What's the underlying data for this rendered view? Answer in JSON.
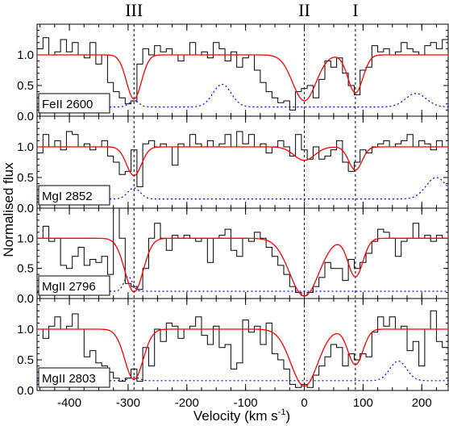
{
  "chart_data": {
    "type": "line",
    "xlabel": "Velocity (km s",
    "xlabel_sup": "-1",
    "xlabel_close": ")",
    "ylabel": "Normalised flux",
    "xlim": [
      -455,
      245
    ],
    "ylim": [
      0.0,
      1.5
    ],
    "x_ticks": [
      -400,
      -300,
      -200,
      -100,
      0,
      100,
      200
    ],
    "y_ticks": [
      0.0,
      0.5,
      1.0
    ],
    "colors": {
      "data": "#000000",
      "fit": "#ff0000",
      "error": "#0000ff",
      "marker": "#000000"
    },
    "components": [
      {
        "label": "III",
        "velocity": -290
      },
      {
        "label": "II",
        "velocity": 0
      },
      {
        "label": "I",
        "velocity": 87
      }
    ],
    "panels": [
      {
        "label": "FeII 2600",
        "data_x": [
          -450,
          -440,
          -430,
          -420,
          -410,
          -400,
          -390,
          -380,
          -370,
          -360,
          -350,
          -340,
          -330,
          -320,
          -310,
          -300,
          -290,
          -280,
          -270,
          -260,
          -250,
          -240,
          -230,
          -220,
          -210,
          -200,
          -190,
          -180,
          -170,
          -160,
          -150,
          -140,
          -130,
          -120,
          -110,
          -100,
          -90,
          -80,
          -70,
          -60,
          -50,
          -40,
          -30,
          -20,
          -10,
          0,
          10,
          20,
          30,
          40,
          50,
          60,
          70,
          80,
          90,
          100,
          110,
          120,
          130,
          140,
          150,
          160,
          170,
          180,
          190,
          200,
          210,
          220,
          230,
          240
        ],
        "data_y": [
          1.1,
          1.28,
          1.0,
          1.05,
          1.25,
          1.05,
          1.2,
          1.0,
          0.95,
          1.2,
          0.85,
          1.0,
          0.55,
          0.4,
          0.3,
          0.2,
          0.25,
          0.85,
          1.1,
          1.0,
          1.15,
          1.05,
          1.1,
          1.0,
          0.9,
          1.0,
          1.2,
          1.0,
          1.05,
          0.95,
          1.2,
          1.1,
          0.9,
          1.05,
          0.8,
          0.95,
          1.0,
          0.75,
          0.55,
          0.4,
          0.3,
          0.22,
          0.25,
          0.1,
          0.4,
          0.45,
          0.5,
          0.3,
          0.6,
          0.9,
          0.8,
          0.95,
          0.7,
          0.5,
          0.35,
          0.75,
          0.8,
          1.15,
          1.05,
          1.1,
          1.0,
          1.05,
          1.2,
          1.1,
          1.05,
          1.0,
          1.15,
          1.2,
          1.1,
          1.25
        ],
        "fit": {
          "continuum": 1.0,
          "lines": [
            {
              "v": -290,
              "depth": 0.72,
              "b": 18
            },
            {
              "v": 0,
              "depth": 0.75,
              "b": 28
            },
            {
              "v": 87,
              "depth": 0.62,
              "b": 18
            }
          ]
        },
        "error": {
          "base": 0.15,
          "bumps": [
            {
              "v": -290,
              "amp": 0.1,
              "w": 12
            },
            {
              "v": -140,
              "amp": 0.37,
              "w": 22
            },
            {
              "v": 190,
              "amp": 0.22,
              "w": 25
            }
          ]
        }
      },
      {
        "label": "MgI 2852",
        "data_x": [
          -450,
          -440,
          -430,
          -420,
          -410,
          -400,
          -390,
          -380,
          -370,
          -360,
          -350,
          -340,
          -330,
          -320,
          -310,
          -300,
          -290,
          -280,
          -270,
          -260,
          -250,
          -240,
          -230,
          -220,
          -210,
          -200,
          -190,
          -180,
          -170,
          -160,
          -150,
          -140,
          -130,
          -120,
          -110,
          -100,
          -90,
          -80,
          -70,
          -60,
          -50,
          -40,
          -30,
          -20,
          -10,
          0,
          10,
          20,
          30,
          40,
          50,
          60,
          70,
          80,
          90,
          100,
          110,
          120,
          130,
          140,
          150,
          160,
          170,
          180,
          190,
          200,
          210,
          220,
          230,
          240
        ],
        "data_y": [
          0.9,
          1.2,
          1.0,
          1.1,
          0.95,
          1.25,
          1.2,
          1.0,
          1.05,
          0.95,
          1.0,
          1.1,
          0.85,
          0.75,
          0.55,
          0.6,
          0.95,
          0.35,
          1.05,
          1.1,
          1.0,
          1.05,
          1.0,
          0.7,
          1.05,
          1.0,
          1.2,
          1.05,
          1.0,
          1.1,
          1.0,
          1.05,
          1.2,
          1.0,
          1.25,
          1.05,
          1.2,
          1.0,
          1.05,
          0.9,
          1.0,
          1.1,
          1.0,
          0.85,
          1.2,
          0.95,
          0.8,
          1.0,
          0.8,
          0.85,
          0.95,
          1.1,
          0.75,
          0.6,
          0.75,
          0.95,
          0.9,
          1.0,
          1.05,
          1.1,
          1.0,
          1.05,
          1.1,
          1.2,
          1.0,
          1.1,
          1.05,
          0.95,
          1.1,
          1.0
        ],
        "fit": {
          "continuum": 1.0,
          "lines": [
            {
              "v": -290,
              "depth": 0.47,
              "b": 18
            },
            {
              "v": 0,
              "depth": 0.22,
              "b": 25
            },
            {
              "v": 87,
              "depth": 0.38,
              "b": 16
            }
          ]
        },
        "error": {
          "base": 0.15,
          "bumps": [
            {
              "v": -290,
              "amp": 0.18,
              "w": 15
            },
            {
              "v": 225,
              "amp": 0.35,
              "w": 25
            }
          ]
        }
      },
      {
        "label": "MgII 2796",
        "data_x": [
          -450,
          -440,
          -430,
          -420,
          -410,
          -400,
          -390,
          -380,
          -370,
          -360,
          -350,
          -340,
          -330,
          -320,
          -310,
          -300,
          -290,
          -280,
          -270,
          -260,
          -250,
          -240,
          -230,
          -220,
          -210,
          -200,
          -190,
          -180,
          -170,
          -160,
          -150,
          -140,
          -130,
          -120,
          -110,
          -100,
          -90,
          -80,
          -70,
          -60,
          -50,
          -40,
          -30,
          -20,
          -10,
          0,
          10,
          20,
          30,
          40,
          50,
          60,
          70,
          80,
          90,
          100,
          110,
          120,
          130,
          140,
          150,
          160,
          170,
          180,
          190,
          200,
          210,
          220,
          230,
          240
        ],
        "data_y": [
          1.0,
          1.2,
          0.95,
          1.0,
          0.55,
          0.5,
          0.7,
          0.85,
          0.55,
          0.65,
          0.6,
          0.7,
          0.4,
          1.5,
          1.0,
          0.25,
          0.2,
          0.15,
          0.5,
          1.0,
          1.25,
          1.0,
          0.8,
          1.05,
          1.0,
          1.05,
          1.0,
          0.95,
          1.0,
          0.6,
          1.0,
          1.05,
          1.15,
          0.8,
          0.7,
          1.0,
          0.95,
          1.1,
          1.0,
          0.85,
          0.7,
          0.55,
          0.4,
          0.2,
          0.1,
          0.05,
          0.1,
          0.2,
          0.35,
          0.6,
          0.5,
          0.5,
          0.3,
          0.65,
          0.5,
          0.6,
          0.75,
          0.95,
          1.15,
          1.1,
          1.0,
          0.7,
          0.95,
          1.0,
          1.25,
          1.0,
          1.05,
          0.95,
          1.05,
          1.0
        ],
        "fit": {
          "continuum": 1.0,
          "lines": [
            {
              "v": -290,
              "depth": 0.89,
              "b": 22
            },
            {
              "v": 0,
              "depth": 0.96,
              "b": 35
            },
            {
              "v": 87,
              "depth": 0.64,
              "b": 18
            }
          ]
        },
        "error": {
          "base": 0.12,
          "bumps": [
            {
              "v": -300,
              "amp": 0.25,
              "w": 10
            }
          ]
        }
      },
      {
        "label": "MgII 2803",
        "data_x": [
          -450,
          -440,
          -430,
          -420,
          -410,
          -400,
          -390,
          -380,
          -370,
          -360,
          -350,
          -340,
          -330,
          -320,
          -310,
          -300,
          -290,
          -280,
          -270,
          -260,
          -250,
          -240,
          -230,
          -220,
          -210,
          -200,
          -190,
          -180,
          -170,
          -160,
          -150,
          -140,
          -130,
          -120,
          -110,
          -100,
          -90,
          -80,
          -70,
          -60,
          -50,
          -40,
          -30,
          -20,
          -10,
          0,
          10,
          20,
          30,
          40,
          50,
          60,
          70,
          80,
          90,
          100,
          110,
          120,
          130,
          140,
          150,
          160,
          170,
          180,
          190,
          200,
          210,
          220,
          230,
          240
        ],
        "data_y": [
          1.0,
          0.85,
          1.05,
          1.2,
          1.0,
          1.05,
          1.25,
          1.0,
          0.55,
          0.65,
          0.45,
          0.4,
          0.3,
          0.2,
          0.15,
          0.2,
          0.35,
          0.15,
          0.7,
          0.4,
          1.0,
          0.8,
          1.1,
          1.05,
          0.85,
          1.0,
          1.05,
          1.2,
          0.9,
          0.75,
          1.05,
          0.7,
          0.75,
          0.35,
          0.45,
          1.15,
          0.95,
          1.05,
          0.75,
          1.1,
          0.6,
          0.5,
          0.35,
          0.1,
          0.05,
          0.1,
          0.05,
          0.25,
          0.4,
          0.55,
          0.75,
          0.7,
          0.4,
          0.6,
          0.5,
          0.6,
          0.55,
          0.95,
          1.2,
          1.05,
          1.2,
          1.0,
          1.05,
          0.65,
          0.8,
          0.4,
          1.0,
          1.3,
          0.8,
          0.7
        ],
        "fit": {
          "continuum": 1.0,
          "lines": [
            {
              "v": -290,
              "depth": 0.82,
              "b": 22
            },
            {
              "v": 0,
              "depth": 0.93,
              "b": 32
            },
            {
              "v": 87,
              "depth": 0.58,
              "b": 18
            }
          ]
        },
        "error": {
          "base": 0.16,
          "bumps": [
            {
              "v": -290,
              "amp": 0.06,
              "w": 12
            },
            {
              "v": 160,
              "amp": 0.32,
              "w": 20
            }
          ]
        }
      }
    ]
  }
}
